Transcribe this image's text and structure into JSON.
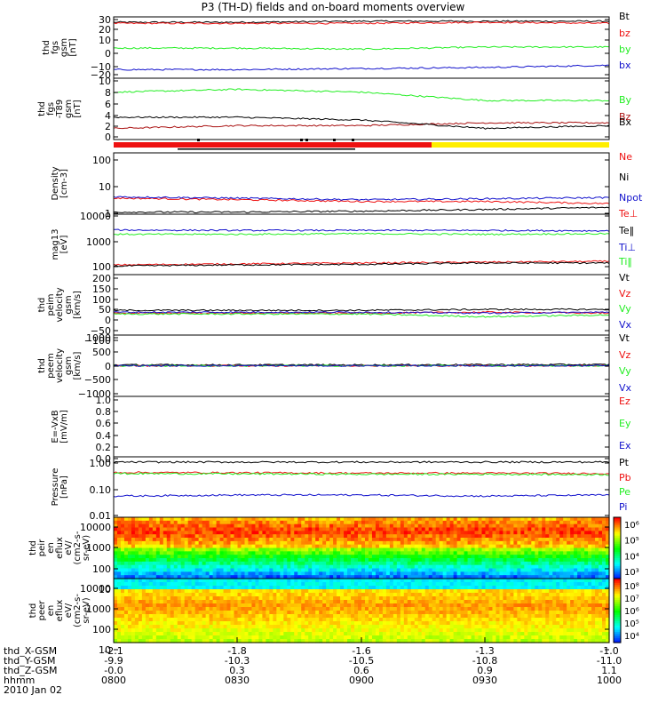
{
  "title": "P3 (TH-D) fields and on-board moments overview",
  "date": "2010 Jan 02",
  "colors": {
    "black": "#000000",
    "red": "#ee1111",
    "green": "#22ee22",
    "blue": "#1111cc",
    "darkred": "#aa1111",
    "yellow": "#ffee00"
  },
  "time_axis": {
    "rows": [
      {
        "label": "thd_X-GSM",
        "values": [
          "-2.1",
          "-1.8",
          "-1.6",
          "-1.3",
          "-1.0"
        ]
      },
      {
        "label": "thd_Y-GSM",
        "values": [
          "-9.9",
          "-10.3",
          "-10.5",
          "-10.8",
          "-11.0"
        ]
      },
      {
        "label": "thd_Z-GSM",
        "values": [
          "-0.0",
          "0.3",
          "0.6",
          "0.9",
          "1.1"
        ]
      },
      {
        "label": "hhmm",
        "values": [
          "0800",
          "0830",
          "0900",
          "0930",
          "1000"
        ]
      }
    ]
  },
  "panels": [
    {
      "id": "fgs",
      "ylabel": [
        "thd",
        "fgs",
        "gsm",
        "[nT]"
      ],
      "ticks": [
        "30",
        "20",
        "10",
        "0",
        "−10",
        "−20"
      ],
      "legend": [
        "Bt",
        "bz",
        "by",
        "bx"
      ]
    },
    {
      "id": "fgs_t89",
      "ylabel": [
        "thd",
        "fgs",
        "-T89",
        "gsm",
        "[nT]"
      ],
      "ticks": [
        "10",
        "8",
        "6",
        "4",
        "2",
        "0"
      ],
      "legend": [
        "By",
        "Bz",
        "Bx"
      ]
    },
    {
      "id": "density",
      "ylabel": [
        "Density",
        "[cm-3]"
      ],
      "ticks": [
        "100",
        "10",
        "1"
      ],
      "legend": [
        "Ne",
        "Ni",
        "Npot"
      ]
    },
    {
      "id": "temp",
      "ylabel": [
        "mag13",
        "[eV]"
      ],
      "ticks": [
        "10000",
        "1000",
        "100"
      ],
      "legend": [
        "Te⊥",
        "Te‖",
        "Ti⊥",
        "Ti‖"
      ]
    },
    {
      "id": "peim_v",
      "ylabel": [
        "thd",
        "peim",
        "velocity",
        "gsm",
        "[km/s]"
      ],
      "ticks": [
        "200",
        "150",
        "100",
        "50",
        "0",
        "−50",
        "−100"
      ],
      "legend": [
        "Vt",
        "Vz",
        "Vy",
        "Vx"
      ]
    },
    {
      "id": "peem_v",
      "ylabel": [
        "thd",
        "peem",
        "velocity",
        "gsm",
        "[km/s]"
      ],
      "ticks": [
        "1000",
        "500",
        "0",
        "−500",
        "−1000"
      ],
      "legend": [
        "Vt",
        "Vz",
        "Vy",
        "Vx"
      ]
    },
    {
      "id": "exb",
      "ylabel": [
        "E=-VxB",
        "[mV/m]"
      ],
      "ticks": [
        "1.0",
        "0.8",
        "0.6",
        "0.4",
        "0.2",
        "0.0"
      ],
      "legend": [
        "Ez",
        "Ey",
        "Ex"
      ]
    },
    {
      "id": "pressure",
      "ylabel": [
        "Pressure",
        "[nPa]"
      ],
      "ticks": [
        "1.00",
        "0.10",
        "0.01"
      ],
      "legend": [
        "Pt",
        "Pb",
        "Pe",
        "Pi"
      ]
    },
    {
      "id": "peir",
      "ylabel": [
        "thd",
        "peir",
        "en",
        "eflux",
        "eV/",
        "(cm2-s-",
        "sr-eV)"
      ],
      "ticks": [
        "10000",
        "1000",
        "100",
        "10"
      ],
      "colorbar": [
        "10⁶",
        "10⁵",
        "10⁴",
        "10³"
      ]
    },
    {
      "id": "peer",
      "ylabel": [
        "thd",
        "peer",
        "en",
        "eflux",
        "eV/",
        "(cm2-s-",
        "sr-eV)"
      ],
      "ticks": [
        "10000",
        "1000",
        "100",
        "10"
      ],
      "colorbar": [
        "10⁸",
        "10⁷",
        "10⁶",
        "10⁵",
        "10⁴"
      ]
    }
  ],
  "chart_data": [
    {
      "type": "line",
      "panel": "fgs",
      "ylim": [
        -25,
        32
      ],
      "x": [
        "0800",
        "0830",
        "0900",
        "0930",
        "1000"
      ],
      "series": [
        {
          "name": "Bt",
          "values": [
            27,
            27,
            28,
            28,
            28
          ]
        },
        {
          "name": "bz",
          "values": [
            26,
            26,
            26,
            27,
            26
          ]
        },
        {
          "name": "by",
          "values": [
            3,
            3,
            2,
            4,
            4
          ]
        },
        {
          "name": "bx",
          "values": [
            -17,
            -17,
            -16,
            -15,
            -13
          ]
        }
      ]
    },
    {
      "type": "line",
      "panel": "fgs_t89",
      "ylim": [
        -1,
        10
      ],
      "x": [
        "0800",
        "0830",
        "0900",
        "0930",
        "1000"
      ],
      "series": [
        {
          "name": "By",
          "values": [
            7.5,
            8,
            7.5,
            6,
            6
          ]
        },
        {
          "name": "Bz",
          "values": [
            1,
            1.5,
            1.5,
            2,
            2
          ]
        },
        {
          "name": "Bx",
          "values": [
            3,
            3,
            2.5,
            1,
            1.5
          ]
        }
      ]
    },
    {
      "type": "line",
      "panel": "density",
      "ylim": [
        1,
        200
      ],
      "log": true,
      "x": [
        "0800",
        "0830",
        "0900",
        "0930",
        "1000"
      ],
      "series": [
        {
          "name": "Ne",
          "values": [
            4,
            3.5,
            3,
            3,
            2.5
          ]
        },
        {
          "name": "Ni",
          "values": [
            1.2,
            1.2,
            1.3,
            1.5,
            1.8
          ]
        },
        {
          "name": "Npot",
          "values": [
            4.5,
            4,
            3.5,
            3.8,
            4.2
          ]
        }
      ]
    },
    {
      "type": "line",
      "panel": "temp",
      "ylim": [
        40,
        12000
      ],
      "log": true,
      "x": [
        "0800",
        "0830",
        "0900",
        "0930",
        "1000"
      ],
      "series": [
        {
          "name": "Te⊥",
          "values": [
            100,
            110,
            120,
            130,
            140
          ]
        },
        {
          "name": "Te‖",
          "values": [
            90,
            100,
            105,
            120,
            120
          ]
        },
        {
          "name": "Ti⊥",
          "values": [
            2700,
            2600,
            2600,
            2600,
            2500
          ]
        },
        {
          "name": "Ti‖",
          "values": [
            1800,
            1800,
            1900,
            1800,
            1900
          ]
        }
      ]
    },
    {
      "type": "line",
      "panel": "peim_v",
      "ylim": [
        -120,
        210
      ],
      "x": [
        "0800",
        "0830",
        "0900",
        "0930",
        "1000"
      ],
      "series": [
        {
          "name": "Vt",
          "values": [
            15,
            15,
            15,
            20,
            20
          ]
        },
        {
          "name": "Vz",
          "values": [
            0,
            0,
            0,
            5,
            0
          ]
        },
        {
          "name": "Vy",
          "values": [
            -5,
            -5,
            -5,
            -20,
            -10
          ]
        },
        {
          "name": "Vx",
          "values": [
            5,
            5,
            5,
            0,
            5
          ]
        }
      ]
    },
    {
      "type": "line",
      "panel": "peem_v",
      "ylim": [
        -1100,
        1100
      ],
      "x": [
        "0800",
        "0830",
        "0900",
        "0930",
        "1000"
      ],
      "series": [
        {
          "name": "Vt",
          "values": [
            30,
            30,
            30,
            40,
            40
          ]
        },
        {
          "name": "Vz",
          "values": [
            0,
            0,
            0,
            0,
            0
          ]
        },
        {
          "name": "Vy",
          "values": [
            0,
            0,
            0,
            0,
            0
          ]
        },
        {
          "name": "Vx",
          "values": [
            0,
            0,
            0,
            0,
            0
          ]
        }
      ]
    },
    {
      "type": "line",
      "panel": "pressure",
      "ylim": [
        0.01,
        1.3
      ],
      "log": true,
      "x": [
        "0800",
        "0830",
        "0900",
        "0930",
        "1000"
      ],
      "series": [
        {
          "name": "Pt",
          "values": [
            0.85,
            0.85,
            0.85,
            0.85,
            0.85
          ]
        },
        {
          "name": "Pb",
          "values": [
            0.37,
            0.36,
            0.35,
            0.35,
            0.34
          ]
        },
        {
          "name": "Pe",
          "values": [
            0.34,
            0.33,
            0.32,
            0.32,
            0.31
          ]
        },
        {
          "name": "Pi",
          "values": [
            0.055,
            0.06,
            0.06,
            0.055,
            0.06
          ]
        }
      ]
    },
    {
      "type": "heatmap",
      "panel": "peir",
      "ylim": [
        5,
        20000
      ],
      "log": true,
      "cbar": [
        1000,
        1000000
      ]
    },
    {
      "type": "heatmap",
      "panel": "peer",
      "ylim": [
        5,
        20000
      ],
      "log": true,
      "cbar": [
        10000,
        100000000
      ]
    }
  ]
}
